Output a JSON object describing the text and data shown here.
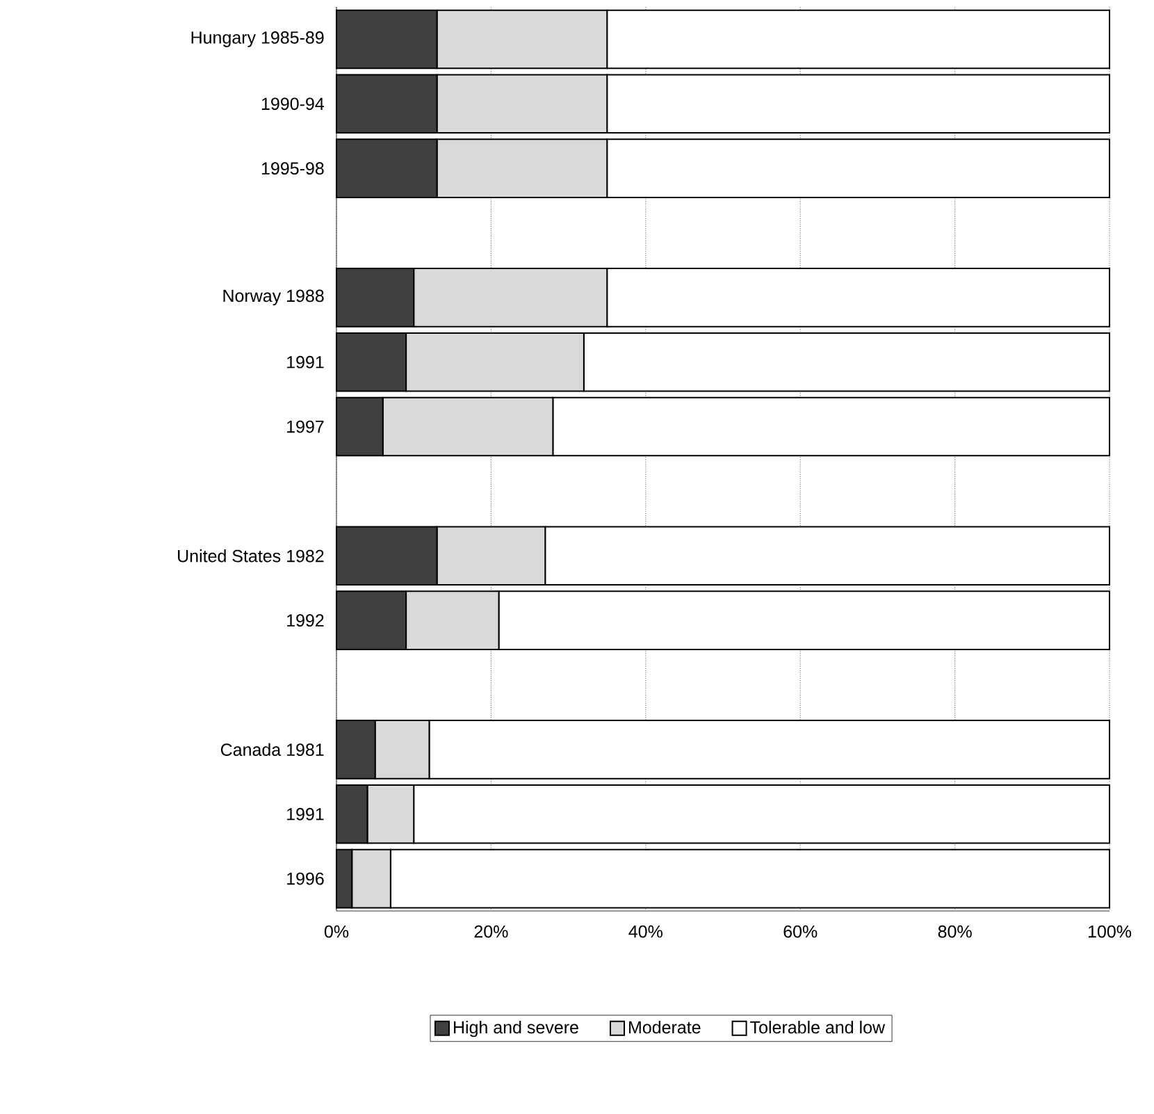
{
  "chart_data": {
    "type": "bar",
    "orientation": "horizontal",
    "stacked": true,
    "categories": [
      "Hungary 1985-89",
      "1990-94",
      "1995-98",
      null,
      "Norway 1988",
      "1991",
      "1997",
      null,
      "United States 1982",
      "1992",
      null,
      "Canada 1981",
      "1991",
      "1996"
    ],
    "series": [
      {
        "name": "High and severe",
        "color": "#404040",
        "values": [
          13,
          13,
          13,
          null,
          10,
          9,
          6,
          null,
          13,
          9,
          null,
          5,
          4,
          2
        ]
      },
      {
        "name": "Moderate",
        "color": "#d9d9d9",
        "values": [
          22,
          22,
          22,
          null,
          25,
          23,
          22,
          null,
          14,
          12,
          null,
          7,
          6,
          5
        ]
      },
      {
        "name": "Tolerable and low",
        "color": "#ffffff",
        "values": [
          65,
          65,
          65,
          null,
          65,
          68,
          72,
          null,
          73,
          79,
          null,
          88,
          90,
          93
        ]
      }
    ],
    "xlim": [
      0,
      100
    ],
    "xticks": [
      {
        "value": 0,
        "label": "0%"
      },
      {
        "value": 20,
        "label": "20%"
      },
      {
        "value": 40,
        "label": "40%"
      },
      {
        "value": 60,
        "label": "60%"
      },
      {
        "value": 80,
        "label": "80%"
      },
      {
        "value": 100,
        "label": "100%"
      }
    ],
    "grid": "x",
    "legend": "bottom"
  }
}
